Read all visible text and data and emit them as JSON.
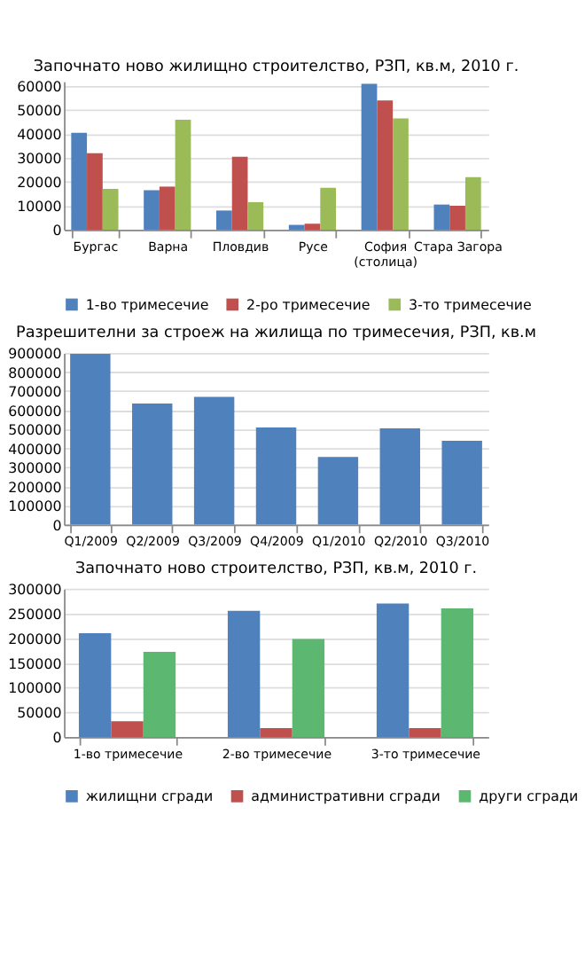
{
  "chart_data": [
    {
      "type": "bar",
      "title": "Започнато ново жилищно строителство, РЗП, кв.м, 2010 г.",
      "categories": [
        "Бургас",
        "Варна",
        "Пловдив",
        "Русе",
        "София (столица)",
        "Стара Загора"
      ],
      "series": [
        {
          "name": "1-во тримесечие",
          "color": "#4f81bd",
          "values": [
            40500,
            16500,
            8000,
            2000,
            61000,
            10500
          ]
        },
        {
          "name": "2-ро тримесечие",
          "color": "#c0504d",
          "values": [
            32000,
            18000,
            30500,
            2500,
            54000,
            10000
          ]
        },
        {
          "name": "3-то тримесечие",
          "color": "#9bbb59",
          "values": [
            17000,
            46000,
            11500,
            17500,
            46500,
            22000
          ]
        }
      ],
      "ylim": [
        0,
        62000
      ],
      "yticks": [
        0,
        10000,
        20000,
        30000,
        40000,
        50000,
        60000
      ],
      "grid": "y",
      "legend": "bottom"
    },
    {
      "type": "bar",
      "title": "Разрешителни за строеж на жилища по тримесечия, РЗП, кв.м",
      "categories": [
        "Q1/2009",
        "Q2/2009",
        "Q3/2009",
        "Q4/2009",
        "Q1/2010",
        "Q2/2010",
        "Q3/2010"
      ],
      "values": [
        895000,
        635000,
        670000,
        510000,
        355000,
        505000,
        440000
      ],
      "color": "#4f81bd",
      "ylim": [
        0,
        900000
      ],
      "yticks": [
        0,
        100000,
        200000,
        300000,
        400000,
        500000,
        600000,
        700000,
        800000,
        900000
      ],
      "grid": "y"
    },
    {
      "type": "bar",
      "title": "Започнато ново строителство, РЗП, кв.м, 2010 г.",
      "categories": [
        "1-во тримесечие",
        "2-во тримесечие",
        "3-то тримесечие"
      ],
      "series": [
        {
          "name": "жилищни сгради",
          "color": "#4f81bd",
          "values": [
            210000,
            255000,
            270000
          ]
        },
        {
          "name": "административни сгради",
          "color": "#c0504d",
          "values": [
            32000,
            18000,
            18000
          ]
        },
        {
          "name": "други сгради",
          "color": "#5cb870",
          "values": [
            172000,
            198000,
            260000
          ]
        }
      ],
      "ylim": [
        0,
        300000
      ],
      "yticks": [
        0,
        50000,
        100000,
        150000,
        200000,
        250000,
        300000
      ],
      "grid": "y",
      "legend": "bottom"
    }
  ]
}
